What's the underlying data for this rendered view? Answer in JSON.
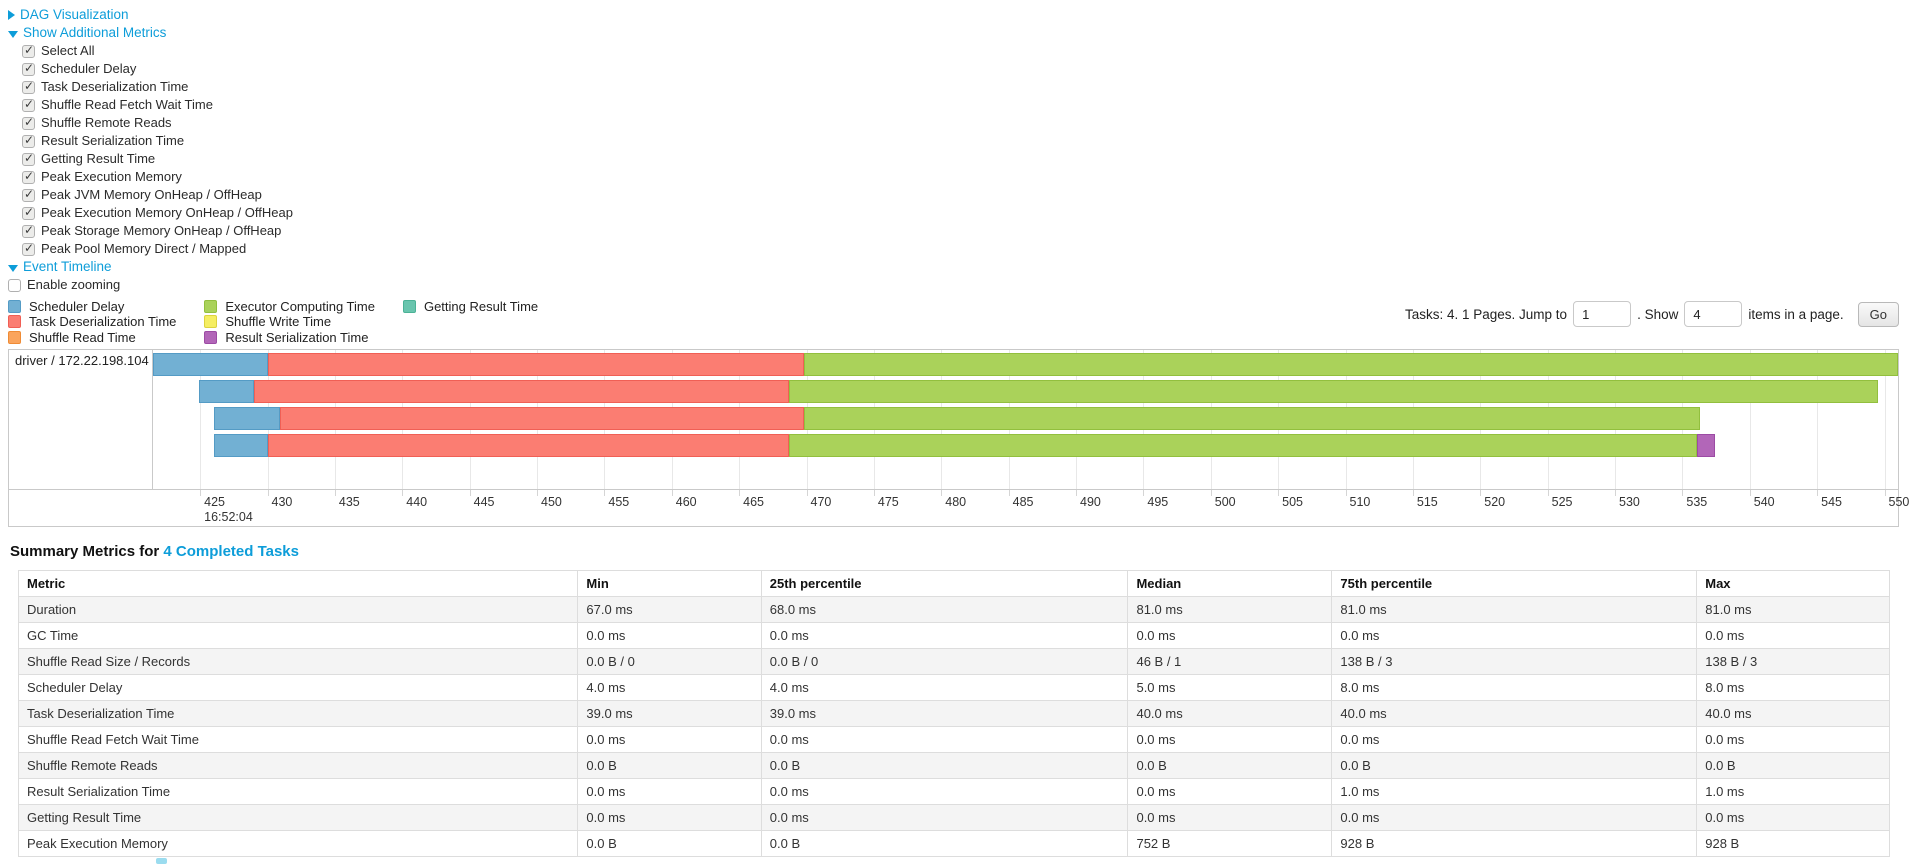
{
  "colors": {
    "link": "#0d9dd9",
    "segments": {
      "scheduler_delay": {
        "fill": "#72B0D3",
        "border": "#549BC5"
      },
      "task_deserialization": {
        "fill": "#FB7D72",
        "border": "#F05F55"
      },
      "shuffle_read": {
        "fill": "#FAA45C",
        "border": "#EF8B35"
      },
      "executor_computing": {
        "fill": "#AAD25A",
        "border": "#92BF3E"
      },
      "shuffle_write": {
        "fill": "#F5EE62",
        "border": "#DCD33F"
      },
      "result_serialization": {
        "fill": "#B266B8",
        "border": "#9C4BA4"
      },
      "getting_result": {
        "fill": "#69C5AE",
        "border": "#4BB296"
      }
    }
  },
  "sections": {
    "dag_label": "DAG Visualization",
    "metrics_label": "Show Additional Metrics",
    "timeline_label": "Event Timeline",
    "enable_zooming_label": "Enable zooming"
  },
  "metric_checkboxes": [
    "Select All",
    "Scheduler Delay",
    "Task Deserialization Time",
    "Shuffle Read Fetch Wait Time",
    "Shuffle Remote Reads",
    "Result Serialization Time",
    "Getting Result Time",
    "Peak Execution Memory",
    "Peak JVM Memory OnHeap / OffHeap",
    "Peak Execution Memory OnHeap / OffHeap",
    "Peak Storage Memory OnHeap / OffHeap",
    "Peak Pool Memory Direct / Mapped"
  ],
  "legend_items": [
    {
      "key": "scheduler_delay",
      "label": "Scheduler Delay"
    },
    {
      "key": "task_deserialization",
      "label": "Task Deserialization Time"
    },
    {
      "key": "shuffle_read",
      "label": "Shuffle Read Time"
    },
    {
      "key": "executor_computing",
      "label": "Executor Computing Time"
    },
    {
      "key": "shuffle_write",
      "label": "Shuffle Write Time"
    },
    {
      "key": "result_serialization",
      "label": "Result Serialization Time"
    },
    {
      "key": "getting_result",
      "label": "Getting Result Time"
    }
  ],
  "pagination": {
    "tasks_text": "Tasks: 4. 1 Pages. Jump to",
    "jump_value": "1",
    "show_label": ". Show",
    "page_size_value": "4",
    "items_label": "items in a page.",
    "go_label": "Go"
  },
  "chart_data": {
    "type": "bar",
    "subtype": "horizontal-stacked-timeline",
    "row_label": "driver / 172.22.198.104",
    "xlim": [
      421.5,
      551.0
    ],
    "ticks": [
      425,
      430,
      435,
      440,
      445,
      450,
      455,
      460,
      465,
      470,
      475,
      480,
      485,
      490,
      495,
      500,
      505,
      510,
      515,
      520,
      525,
      530,
      535,
      540,
      545,
      550
    ],
    "x_start_time": "16:52:04",
    "grid": true,
    "tasks": [
      {
        "segments": [
          {
            "key": "scheduler_delay",
            "start": 421.5,
            "end": 430.0
          },
          {
            "key": "task_deserialization",
            "start": 430.0,
            "end": 469.8
          },
          {
            "key": "executor_computing",
            "start": 469.8,
            "end": 551.0
          }
        ]
      },
      {
        "segments": [
          {
            "key": "scheduler_delay",
            "start": 424.9,
            "end": 429.0
          },
          {
            "key": "task_deserialization",
            "start": 429.0,
            "end": 468.7
          },
          {
            "key": "executor_computing",
            "start": 468.7,
            "end": 549.5
          }
        ]
      },
      {
        "segments": [
          {
            "key": "scheduler_delay",
            "start": 426.0,
            "end": 430.9
          },
          {
            "key": "task_deserialization",
            "start": 430.9,
            "end": 469.8
          },
          {
            "key": "executor_computing",
            "start": 469.8,
            "end": 536.3
          }
        ]
      },
      {
        "segments": [
          {
            "key": "scheduler_delay",
            "start": 426.0,
            "end": 430.0
          },
          {
            "key": "task_deserialization",
            "start": 430.0,
            "end": 468.7
          },
          {
            "key": "executor_computing",
            "start": 468.7,
            "end": 536.1
          },
          {
            "key": "result_serialization",
            "start": 536.1,
            "end": 537.4
          }
        ]
      }
    ]
  },
  "summary": {
    "title_prefix": "Summary Metrics for",
    "title_link": "4 Completed Tasks",
    "columns": [
      "Metric",
      "Min",
      "25th percentile",
      "Median",
      "75th percentile",
      "Max"
    ],
    "rows": [
      [
        "Duration",
        "67.0 ms",
        "68.0 ms",
        "81.0 ms",
        "81.0 ms",
        "81.0 ms"
      ],
      [
        "GC Time",
        "0.0 ms",
        "0.0 ms",
        "0.0 ms",
        "0.0 ms",
        "0.0 ms"
      ],
      [
        "Shuffle Read Size / Records",
        "0.0 B / 0",
        "0.0 B / 0",
        "46 B / 1",
        "138 B / 3",
        "138 B / 3"
      ],
      [
        "Scheduler Delay",
        "4.0 ms",
        "4.0 ms",
        "5.0 ms",
        "8.0 ms",
        "8.0 ms"
      ],
      [
        "Task Deserialization Time",
        "39.0 ms",
        "39.0 ms",
        "40.0 ms",
        "40.0 ms",
        "40.0 ms"
      ],
      [
        "Shuffle Read Fetch Wait Time",
        "0.0 ms",
        "0.0 ms",
        "0.0 ms",
        "0.0 ms",
        "0.0 ms"
      ],
      [
        "Shuffle Remote Reads",
        "0.0 B",
        "0.0 B",
        "0.0 B",
        "0.0 B",
        "0.0 B"
      ],
      [
        "Result Serialization Time",
        "0.0 ms",
        "0.0 ms",
        "0.0 ms",
        "1.0 ms",
        "1.0 ms"
      ],
      [
        "Getting Result Time",
        "0.0 ms",
        "0.0 ms",
        "0.0 ms",
        "0.0 ms",
        "0.0 ms"
      ],
      [
        "Peak Execution Memory",
        "0.0 B",
        "0.0 B",
        "752 B",
        "928 B",
        "928 B"
      ]
    ]
  }
}
